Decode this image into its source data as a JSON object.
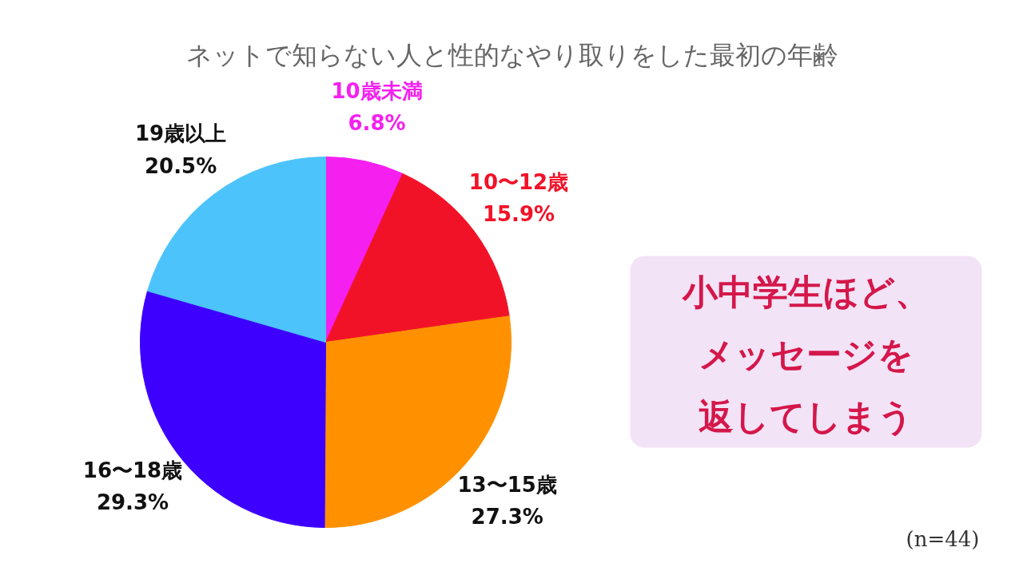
{
  "chart_data": {
    "type": "pie",
    "title": "ネットで知らない人と性的なやり取りをした最初の年齢",
    "categories": [
      "10歳未満",
      "10〜12歳",
      "13〜15歳",
      "16〜18歳",
      "19歳以上"
    ],
    "values": [
      6.8,
      15.9,
      27.3,
      29.3,
      20.5
    ],
    "value_labels": [
      "6.8%",
      "15.9%",
      "27.3%",
      "29.3%",
      "20.5%"
    ],
    "colors": [
      "#f520f0",
      "#f21228",
      "#ff9100",
      "#3d00ff",
      "#4cc3fb"
    ],
    "annotations": [
      "小中学生ほど、",
      "メッセージを",
      "返してしまう",
      "(n=44)"
    ]
  }
}
